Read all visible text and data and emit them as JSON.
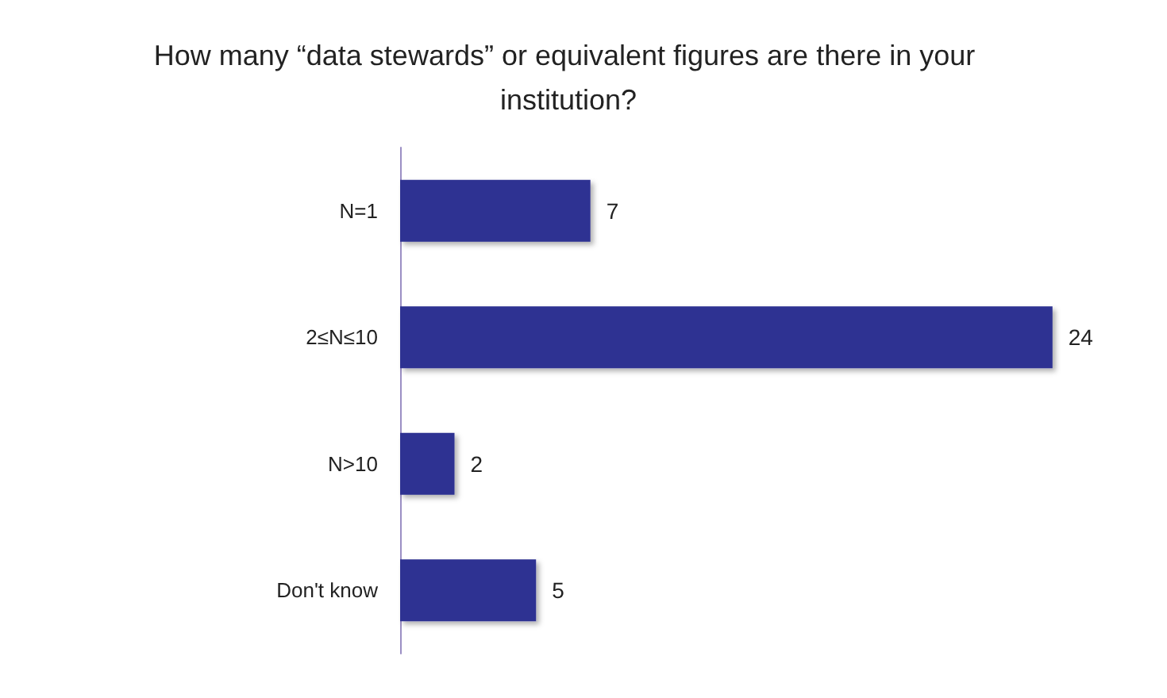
{
  "chart_data": {
    "type": "bar",
    "orientation": "horizontal",
    "title": "How many “data stewards” or equivalent figures are there in your institution?",
    "categories": [
      "N=1",
      "2≤N≤10",
      "N>10",
      "Don't know"
    ],
    "values": [
      7,
      24,
      2,
      5
    ],
    "color": "#2e3192",
    "data_labels": true
  }
}
